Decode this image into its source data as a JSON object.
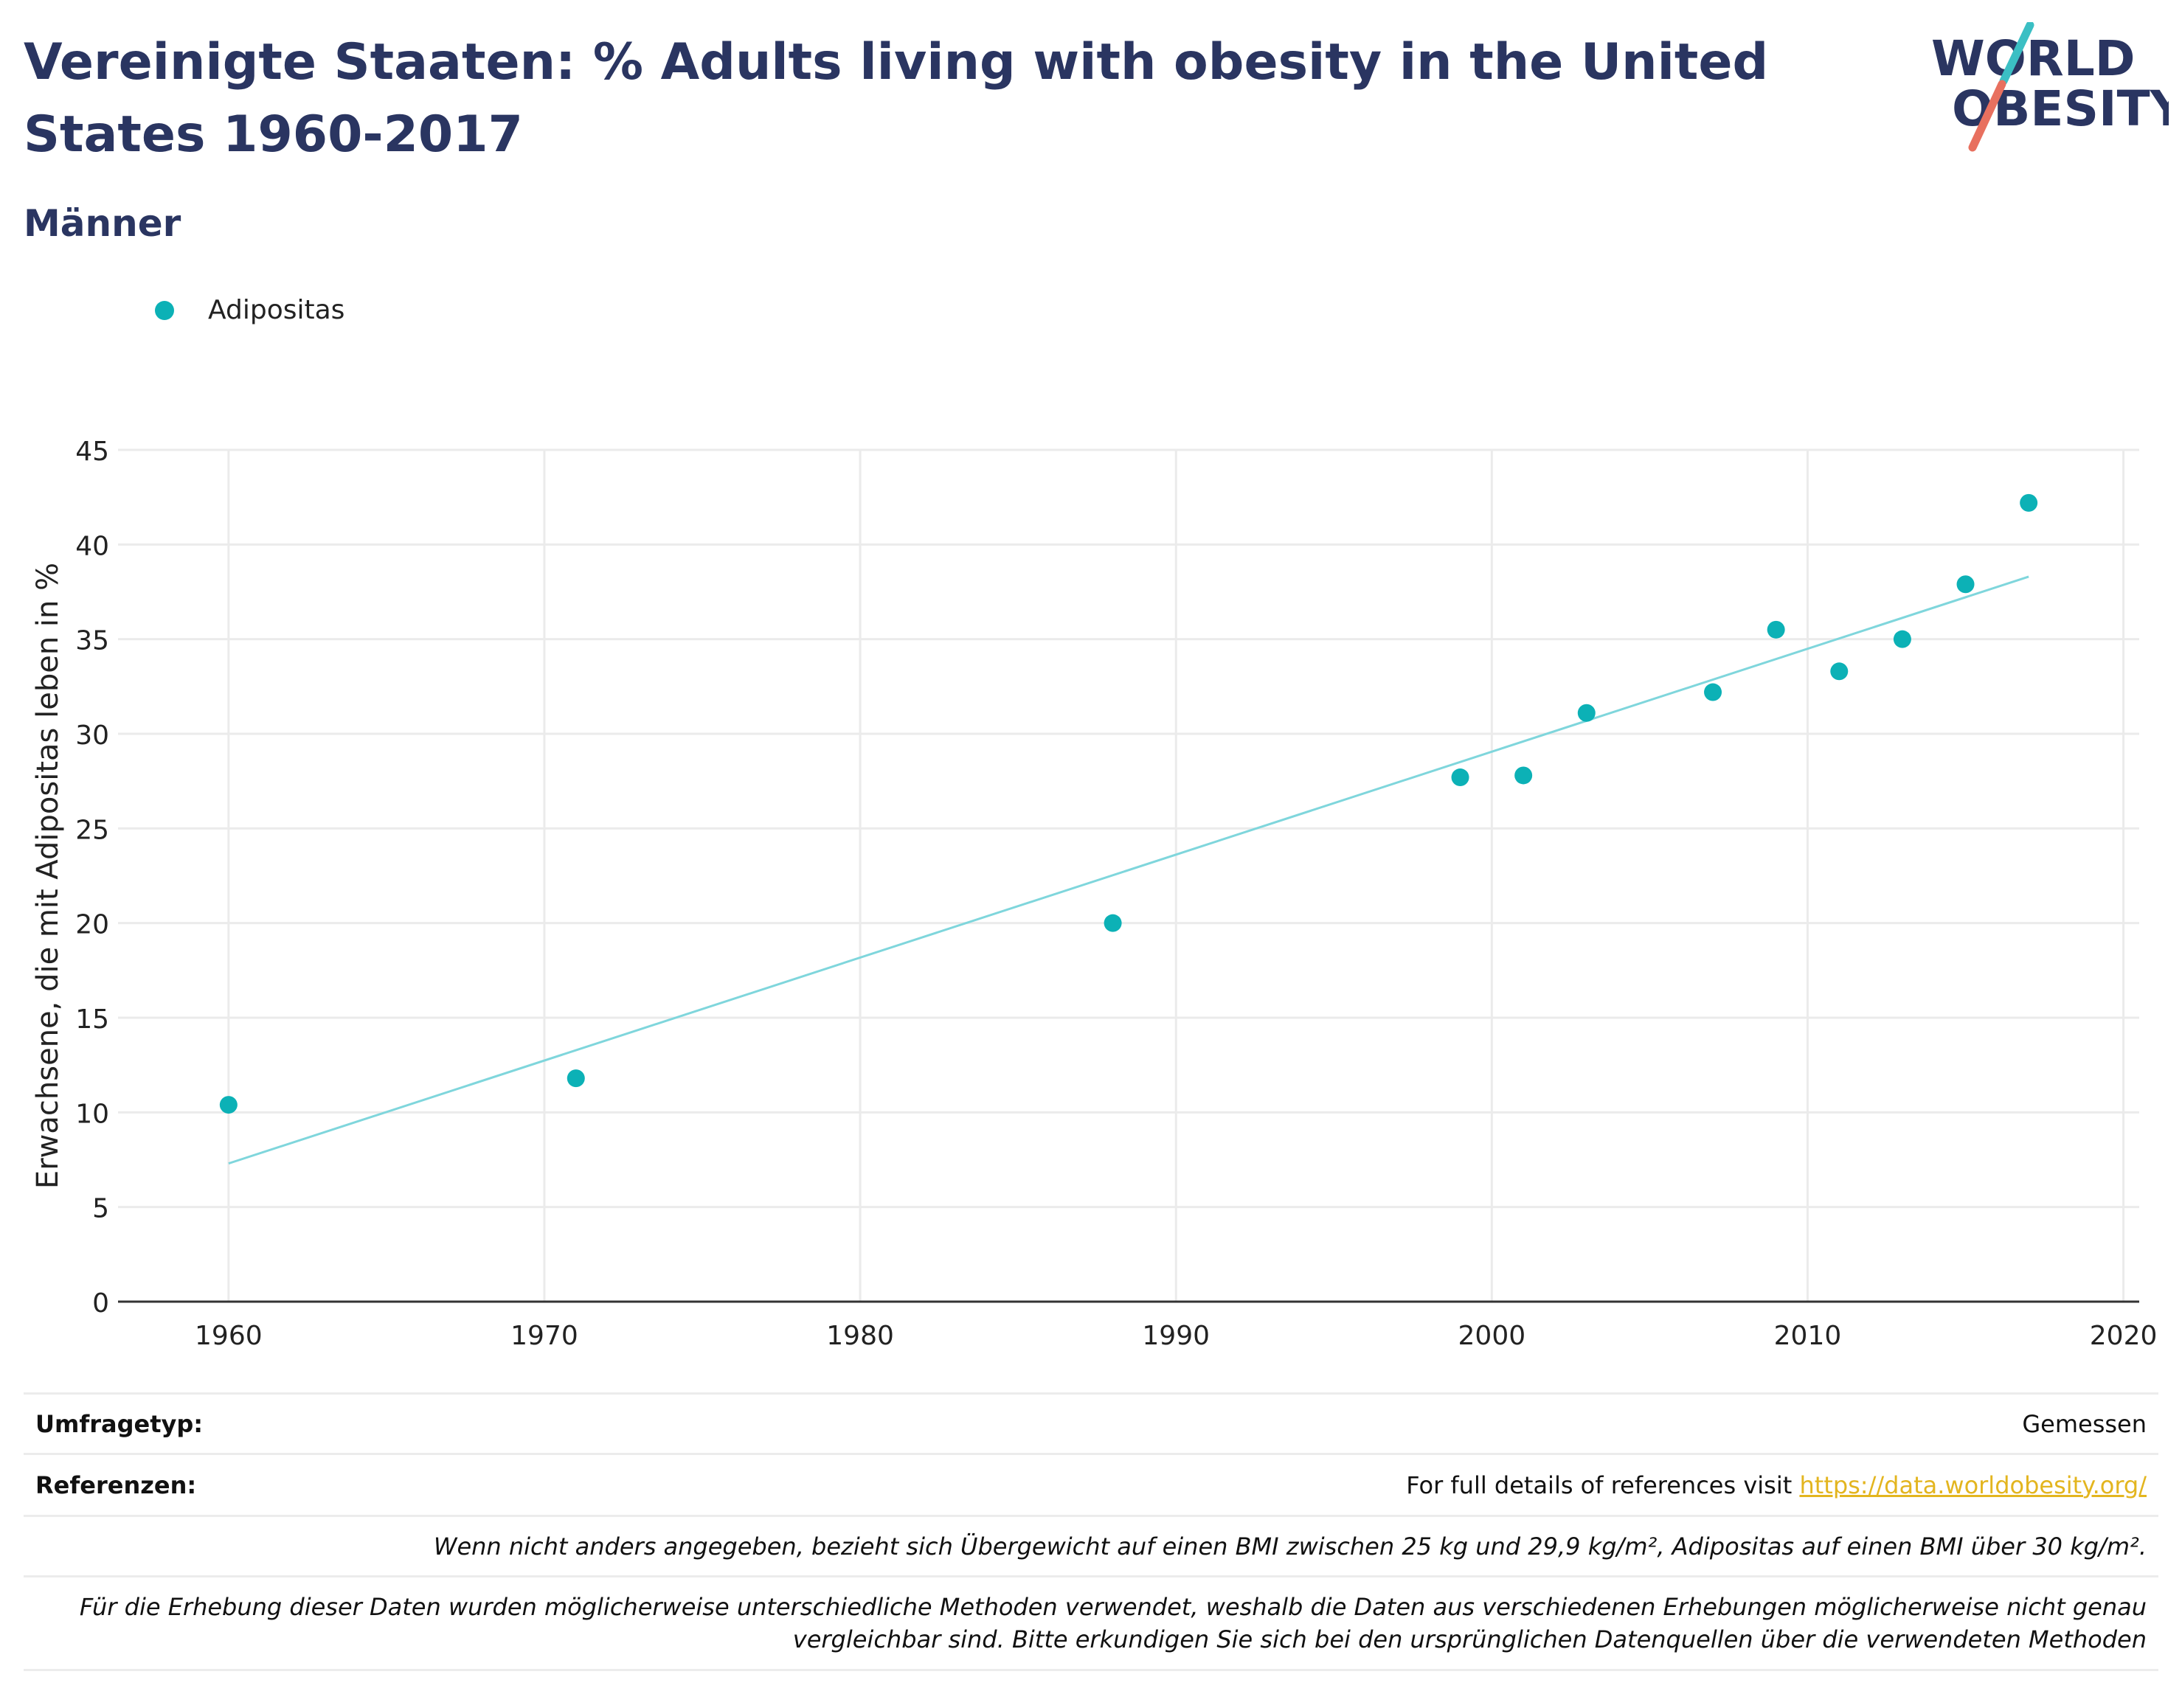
{
  "header": {
    "title": "Vereinigte Staaten: % Adults living with obesity in the United States 1960-2017",
    "subtitle": "Männer",
    "logo_line1": "WORLD",
    "logo_line2": "OBESITY"
  },
  "colors": {
    "title": "#2a3561",
    "point": "#0cb1b6",
    "trendline": "#7fd6dc",
    "grid": "#ebebeb",
    "link": "#e3b51f",
    "logo_teal": "#3bbfc4",
    "logo_red": "#e8705f"
  },
  "legend": {
    "series_label": "Adipositas"
  },
  "chart_data": {
    "type": "scatter",
    "title": "",
    "xlabel": "",
    "ylabel": "Erwachsene, die mit Adipositas leben in %",
    "xlim": [
      1956.5,
      2020.5
    ],
    "ylim": [
      0,
      45
    ],
    "xticks": [
      1960,
      1970,
      1980,
      1990,
      2000,
      2010,
      2020
    ],
    "yticks": [
      0,
      5,
      10,
      15,
      20,
      25,
      30,
      35,
      40,
      45
    ],
    "grid": true,
    "legend_position": "top-left",
    "series": [
      {
        "name": "Adipositas",
        "x": [
          1960,
          1971,
          1988,
          1999,
          2001,
          2003,
          2007,
          2009,
          2011,
          2013,
          2015,
          2017
        ],
        "y": [
          10.4,
          11.8,
          20.0,
          27.7,
          27.8,
          31.1,
          32.2,
          35.5,
          33.3,
          35.0,
          37.9,
          42.2
        ]
      }
    ],
    "trendline": {
      "x": [
        1960,
        2017
      ],
      "y": [
        7.3,
        38.3
      ]
    }
  },
  "footer": {
    "survey_label": "Umfragetyp:",
    "survey_value": "Gemessen",
    "refs_label": "Referenzen:",
    "refs_text": "For full details of references visit ",
    "refs_link": "https://data.worldobesity.org/",
    "note1": "Wenn nicht anders angegeben, bezieht sich Übergewicht auf einen BMI zwischen 25 kg und 29,9 kg/m², Adipositas auf einen BMI über 30 kg/m².",
    "note2": "Für die Erhebung dieser Daten wurden möglicherweise unterschiedliche Methoden verwendet, weshalb die Daten aus verschiedenen Erhebungen möglicherweise nicht genau vergleichbar sind. Bitte erkundigen Sie sich bei den ursprünglichen Datenquellen über die verwendeten Methoden"
  }
}
